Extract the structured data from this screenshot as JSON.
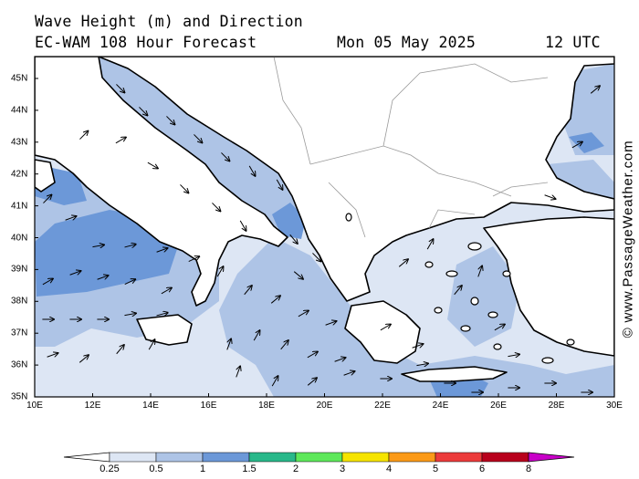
{
  "title_line1": "Wave Height (m) and Direction",
  "title_line2_model": "EC-WAM 108 Hour Forecast",
  "title_line2_date": "Mon 05 May 2025",
  "title_line2_time": "12 UTC",
  "watermark": "© www.PassageWeather.com",
  "axes": {
    "lon_ticks": [
      "10E",
      "12E",
      "14E",
      "16E",
      "18E",
      "20E",
      "22E",
      "24E",
      "26E",
      "28E",
      "30E"
    ],
    "lat_ticks": [
      "45N",
      "44N",
      "43N",
      "42N",
      "41N",
      "40N",
      "39N",
      "38N",
      "37N",
      "36N",
      "35N"
    ]
  },
  "legend": {
    "labels": [
      "0.25",
      "0.5",
      "1",
      "1.5",
      "2",
      "3",
      "4",
      "5",
      "6",
      "8"
    ],
    "colors": [
      "#ffffff",
      "#dde6f4",
      "#aec4e6",
      "#6c98d8",
      "#29b88a",
      "#5ee85a",
      "#f6e400",
      "#fb9a18",
      "#ec3b3b",
      "#b8001c",
      "#c800c8"
    ]
  },
  "colors": {
    "land": "#ffffff",
    "sea_calm": "#dde6f4",
    "sea_mid": "#aec4e6",
    "sea_high": "#6c98d8",
    "coast": "#000000",
    "border": "#9a9a9a"
  }
}
